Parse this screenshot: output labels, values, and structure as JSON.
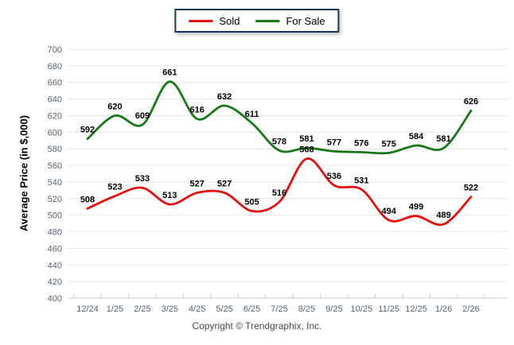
{
  "legend": {
    "items": [
      {
        "label": "Sold",
        "color": "#e01010"
      },
      {
        "label": "For Sale",
        "color": "#187818"
      }
    ]
  },
  "footer": {
    "copyright": "Copyright © Trendgraphix, Inc."
  },
  "chart_data": {
    "type": "line",
    "x": [
      "12/24",
      "1/25",
      "2/25",
      "3/25",
      "4/25",
      "5/25",
      "6/25",
      "7/25",
      "8/25",
      "9/25",
      "10/25",
      "11/25",
      "12/25",
      "1/26",
      "2/26"
    ],
    "series": [
      {
        "name": "Sold",
        "color": "#e01010",
        "values": [
          508,
          523,
          533,
          513,
          527,
          527,
          505,
          516,
          568,
          536,
          531,
          494,
          499,
          489,
          522
        ]
      },
      {
        "name": "For Sale",
        "color": "#187818",
        "values": [
          592,
          620,
          609,
          661,
          616,
          632,
          611,
          578,
          581,
          577,
          576,
          575,
          584,
          581,
          626
        ]
      }
    ],
    "title": "",
    "xlabel": "",
    "ylabel": "Average Price (in $,000)",
    "ylim": [
      400,
      700
    ],
    "ytick_step": 20,
    "grid": "horizontal",
    "legend_position": "top-center",
    "smooth": true,
    "point_labels": true
  },
  "style": {
    "grid_color": "#e6e6e6",
    "baseline_color": "#c9c9c9",
    "tick_color": "#c9c9c9",
    "axis_text_color": "#5a6472",
    "point_label_color": "#000000",
    "legend_border_color": "#17365d",
    "background": "#ffffff"
  }
}
